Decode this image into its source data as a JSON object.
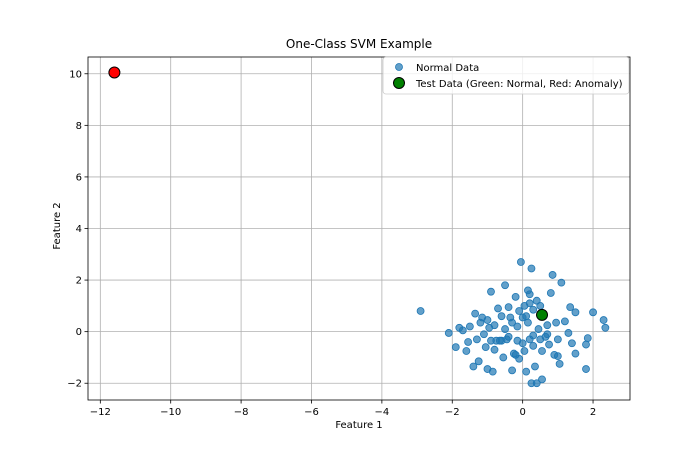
{
  "chart_data": {
    "type": "scatter",
    "title": "One-Class SVM Example",
    "xlabel": "Feature 1",
    "ylabel": "Feature 2",
    "xlim": [
      -12.35,
      3.05
    ],
    "ylim": [
      -2.65,
      10.65
    ],
    "xticks": [
      -12,
      -10,
      -8,
      -6,
      -4,
      -2,
      0,
      2
    ],
    "yticks": [
      -2,
      0,
      2,
      4,
      6,
      8,
      10
    ],
    "grid": true,
    "legend_position": "top-right",
    "series": [
      {
        "name": "Normal Data",
        "color": "#1f77b4",
        "points": [
          [
            -2.9,
            0.8
          ],
          [
            -2.1,
            -0.05
          ],
          [
            -1.9,
            -0.6
          ],
          [
            -1.8,
            0.15
          ],
          [
            -1.7,
            0.05
          ],
          [
            -1.6,
            -0.75
          ],
          [
            -1.55,
            -0.4
          ],
          [
            -1.5,
            0.2
          ],
          [
            -1.4,
            -1.35
          ],
          [
            -1.35,
            0.7
          ],
          [
            -1.3,
            -0.3
          ],
          [
            -1.25,
            -1.15
          ],
          [
            -1.2,
            0.35
          ],
          [
            -1.15,
            0.55
          ],
          [
            -1.1,
            -0.1
          ],
          [
            -1.05,
            -0.6
          ],
          [
            -1.0,
            -1.45
          ],
          [
            -0.95,
            0.15
          ],
          [
            -0.9,
            -0.35
          ],
          [
            -0.9,
            1.55
          ],
          [
            -0.85,
            -1.55
          ],
          [
            -0.8,
            0.25
          ],
          [
            -0.8,
            -0.7
          ],
          [
            -0.75,
            -0.35
          ],
          [
            -0.7,
            0.9
          ],
          [
            -0.65,
            -0.35
          ],
          [
            -0.6,
            0.6
          ],
          [
            -0.55,
            -1.0
          ],
          [
            -0.5,
            0.1
          ],
          [
            -0.5,
            1.8
          ],
          [
            -0.45,
            -0.3
          ],
          [
            -0.4,
            0.95
          ],
          [
            -0.4,
            -0.2
          ],
          [
            -0.35,
            0.55
          ],
          [
            -0.3,
            -1.5
          ],
          [
            -0.3,
            0.35
          ],
          [
            -0.25,
            -0.85
          ],
          [
            -0.2,
            1.35
          ],
          [
            -0.15,
            0.2
          ],
          [
            -0.15,
            -0.35
          ],
          [
            -0.1,
            0.8
          ],
          [
            -0.1,
            -1.05
          ],
          [
            -0.05,
            2.7
          ],
          [
            0.0,
            -0.45
          ],
          [
            0.0,
            0.55
          ],
          [
            0.05,
            1.0
          ],
          [
            0.05,
            -0.75
          ],
          [
            0.1,
            -1.55
          ],
          [
            0.15,
            1.6
          ],
          [
            0.15,
            0.35
          ],
          [
            0.2,
            1.45
          ],
          [
            0.2,
            -0.3
          ],
          [
            0.25,
            2.45
          ],
          [
            0.25,
            -2.0
          ],
          [
            0.3,
            0.85
          ],
          [
            0.3,
            -0.55
          ],
          [
            0.35,
            -1.35
          ],
          [
            0.4,
            1.2
          ],
          [
            0.4,
            -2.0
          ],
          [
            0.45,
            0.1
          ],
          [
            0.5,
            -0.3
          ],
          [
            0.5,
            1.0
          ],
          [
            0.55,
            -1.85
          ],
          [
            0.55,
            -0.75
          ],
          [
            0.6,
            0.6
          ],
          [
            0.65,
            -0.2
          ],
          [
            0.7,
            0.25
          ],
          [
            0.75,
            -0.5
          ],
          [
            0.8,
            1.5
          ],
          [
            0.85,
            2.2
          ],
          [
            0.9,
            -0.9
          ],
          [
            0.95,
            0.35
          ],
          [
            1.0,
            -0.3
          ],
          [
            1.05,
            -1.25
          ],
          [
            1.1,
            1.9
          ],
          [
            1.2,
            0.4
          ],
          [
            1.3,
            -0.05
          ],
          [
            1.35,
            0.95
          ],
          [
            1.4,
            -0.45
          ],
          [
            1.5,
            0.75
          ],
          [
            1.5,
            -0.85
          ],
          [
            1.8,
            -0.5
          ],
          [
            1.8,
            -1.45
          ],
          [
            1.85,
            -0.25
          ],
          [
            2.0,
            0.75
          ],
          [
            2.3,
            0.45
          ],
          [
            2.35,
            0.15
          ],
          [
            1.0,
            -0.95
          ],
          [
            0.3,
            -0.15
          ],
          [
            -0.6,
            -0.35
          ],
          [
            0.1,
            0.6
          ],
          [
            -1.0,
            0.45
          ],
          [
            0.7,
            -0.1
          ],
          [
            -0.2,
            -0.9
          ],
          [
            0.2,
            1.1
          ]
        ]
      },
      {
        "name": "Test Data (Green: Normal, Red: Anomaly)",
        "points": [
          {
            "x": 0.55,
            "y": 0.65,
            "color": "#008000"
          },
          {
            "x": -11.6,
            "y": 10.05,
            "color": "#ff0000"
          }
        ]
      }
    ]
  }
}
